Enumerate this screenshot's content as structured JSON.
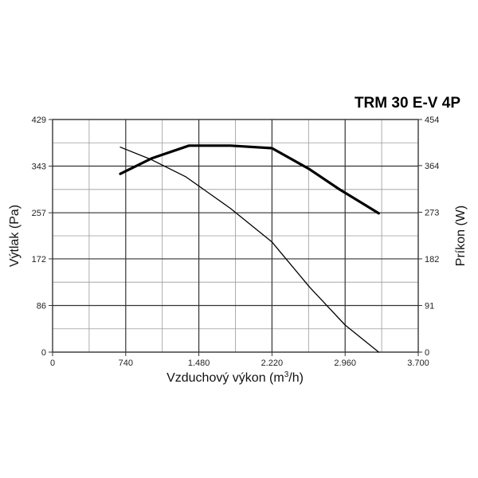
{
  "chart_data": {
    "type": "line",
    "title": "TRM 30 E-V 4P",
    "xlabel": "Vzduchový výkon (m³/h)",
    "xlabel_main": "Vzduchový výkon (m",
    "xlabel_sup": "3",
    "xlabel_end": "/h)",
    "ylabel": "Výtlak (Pa)",
    "y2label": "Príkon (W)",
    "xlim": [
      0,
      3700
    ],
    "ylim": [
      0,
      429
    ],
    "y2lim": [
      0,
      454
    ],
    "x_ticks": [
      0,
      740,
      1480,
      2220,
      2960,
      3700
    ],
    "x_tick_labels": [
      "0",
      "740",
      "1.480",
      "2.220",
      "2.960",
      "3.700"
    ],
    "y_ticks": [
      0,
      86,
      172,
      257,
      343,
      429
    ],
    "y_tick_labels": [
      "0",
      "86",
      "172",
      "257",
      "343",
      "429"
    ],
    "y2_ticks": [
      0,
      91,
      182,
      273,
      364,
      454
    ],
    "y2_tick_labels": [
      "0",
      "91",
      "182",
      "273",
      "364",
      "454"
    ],
    "grid": true,
    "series": [
      {
        "axis": "left",
        "line": "thin",
        "x": [
          685,
          1000,
          1350,
          1800,
          2220,
          2600,
          2960,
          3300
        ],
        "y": [
          378,
          355,
          323,
          265,
          203,
          120,
          50,
          0
        ]
      },
      {
        "axis": "right",
        "line": "thick",
        "x": [
          685,
          1000,
          1380,
          1800,
          2220,
          2600,
          2900,
          3300
        ],
        "y": [
          348,
          378,
          403,
          403,
          398,
          357,
          318,
          271
        ]
      }
    ]
  }
}
